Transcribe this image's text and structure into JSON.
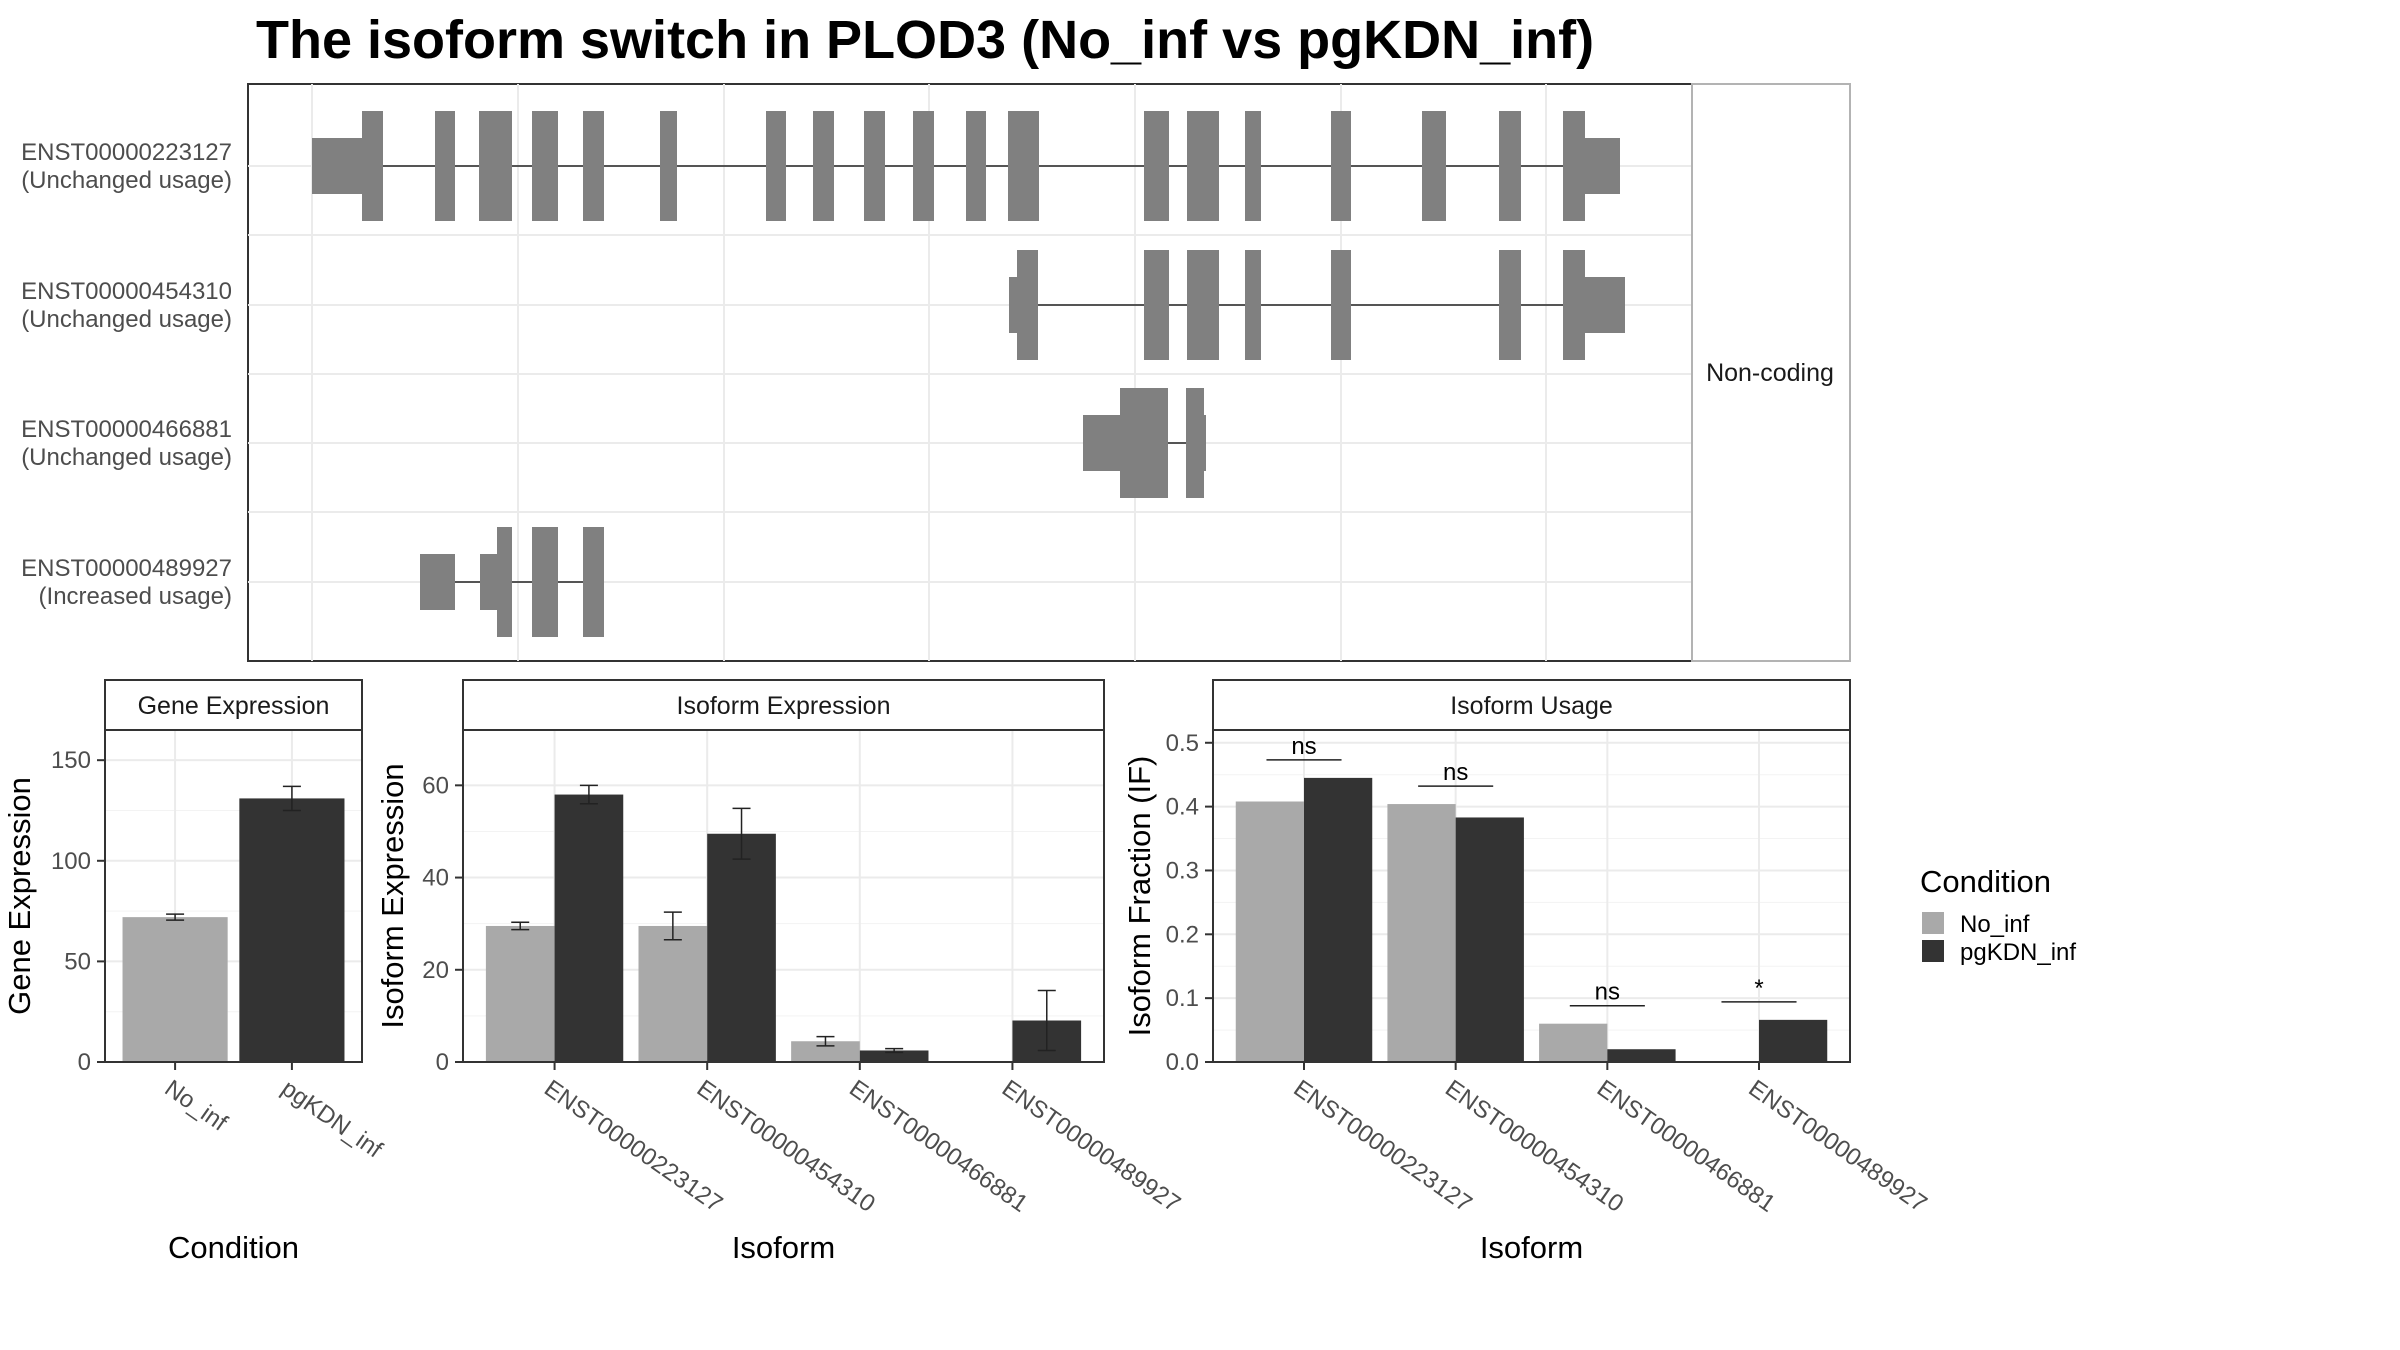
{
  "title": "The isoform switch in PLOD3 (No_inf vs pgKDN_inf)",
  "structure_panel": {
    "strip_label": "Non-coding",
    "isoforms": [
      {
        "id": "ENST00000223127",
        "usage": "(Unchanged usage)"
      },
      {
        "id": "ENST00000454310",
        "usage": "(Unchanged usage)"
      },
      {
        "id": "ENST00000466881",
        "usage": "(Unchanged usage)"
      },
      {
        "id": "ENST00000489927",
        "usage": "(Increased usage)"
      }
    ]
  },
  "legend": {
    "title": "Condition",
    "items": [
      {
        "label": "No_inf",
        "color": "#a9a9a9"
      },
      {
        "label": "pgKDN_inf",
        "color": "#333333"
      }
    ]
  },
  "chart_data": [
    {
      "type": "bar",
      "title": "Gene Expression",
      "xlabel": "Condition",
      "ylabel": "Gene Expression",
      "categories": [
        "No_inf",
        "pgKDN_inf"
      ],
      "values": [
        72,
        131
      ],
      "errors": [
        1.5,
        6
      ],
      "yticks": [
        0,
        50,
        100,
        150
      ],
      "ylim": [
        0,
        165
      ]
    },
    {
      "type": "bar",
      "title": "Isoform Expression",
      "xlabel": "Isoform",
      "ylabel": "Isoform Expression",
      "categories": [
        "ENST00000223127",
        "ENST00000454310",
        "ENST00000466881",
        "ENST00000489927"
      ],
      "series": [
        {
          "name": "No_inf",
          "values": [
            29.5,
            29.5,
            4.5,
            0
          ],
          "errors": [
            0.8,
            3,
            1,
            0
          ]
        },
        {
          "name": "pgKDN_inf",
          "values": [
            58,
            49.5,
            2.5,
            9
          ],
          "errors": [
            2,
            5.5,
            0.4,
            6.5
          ]
        }
      ],
      "yticks": [
        0,
        20,
        40,
        60
      ],
      "ylim": [
        0,
        72
      ]
    },
    {
      "type": "bar",
      "title": "Isoform Usage",
      "xlabel": "Isoform",
      "ylabel": "Isoform Fraction (IF)",
      "categories": [
        "ENST00000223127",
        "ENST00000454310",
        "ENST00000466881",
        "ENST00000489927"
      ],
      "series": [
        {
          "name": "No_inf",
          "values": [
            0.408,
            0.404,
            0.06,
            0.0
          ]
        },
        {
          "name": "pgKDN_inf",
          "values": [
            0.445,
            0.383,
            0.02,
            0.066
          ]
        }
      ],
      "significance": [
        "ns",
        "ns",
        "ns",
        "*"
      ],
      "yticks": [
        "0.0",
        "0.1",
        "0.2",
        "0.3",
        "0.4",
        "0.5"
      ],
      "ylim": [
        0,
        0.52
      ]
    }
  ]
}
